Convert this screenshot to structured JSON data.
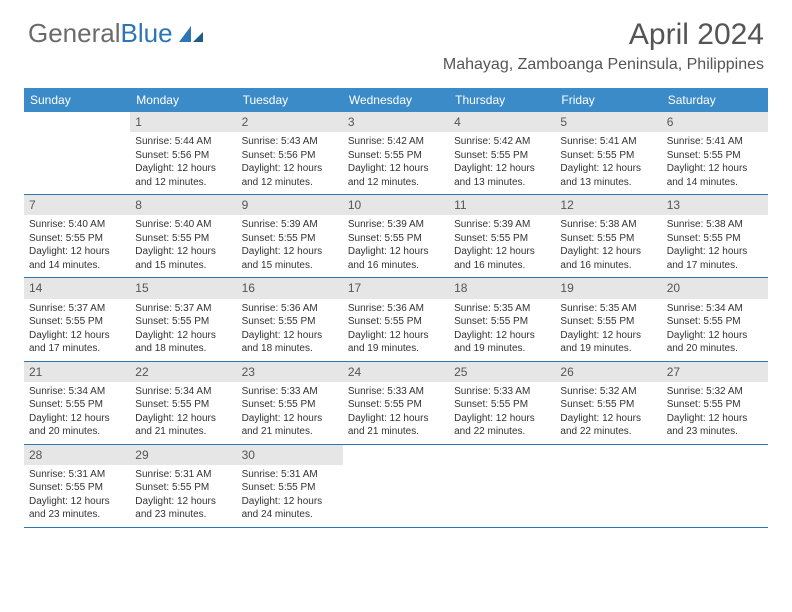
{
  "logo": {
    "text_general": "General",
    "text_blue": "Blue"
  },
  "title": "April 2024",
  "location": "Mahayag, Zamboanga Peninsula, Philippines",
  "colors": {
    "header_bg": "#3b8bc9",
    "row_border": "#2e75b6",
    "daynum_bg": "#e6e6e6",
    "text": "#333333",
    "logo_gray": "#6b6b6b",
    "logo_blue": "#2e75b6"
  },
  "day_names": [
    "Sunday",
    "Monday",
    "Tuesday",
    "Wednesday",
    "Thursday",
    "Friday",
    "Saturday"
  ],
  "weeks": [
    [
      null,
      {
        "n": "1",
        "sr": "5:44 AM",
        "ss": "5:56 PM",
        "dl": "12 hours and 12 minutes."
      },
      {
        "n": "2",
        "sr": "5:43 AM",
        "ss": "5:56 PM",
        "dl": "12 hours and 12 minutes."
      },
      {
        "n": "3",
        "sr": "5:42 AM",
        "ss": "5:55 PM",
        "dl": "12 hours and 12 minutes."
      },
      {
        "n": "4",
        "sr": "5:42 AM",
        "ss": "5:55 PM",
        "dl": "12 hours and 13 minutes."
      },
      {
        "n": "5",
        "sr": "5:41 AM",
        "ss": "5:55 PM",
        "dl": "12 hours and 13 minutes."
      },
      {
        "n": "6",
        "sr": "5:41 AM",
        "ss": "5:55 PM",
        "dl": "12 hours and 14 minutes."
      }
    ],
    [
      {
        "n": "7",
        "sr": "5:40 AM",
        "ss": "5:55 PM",
        "dl": "12 hours and 14 minutes."
      },
      {
        "n": "8",
        "sr": "5:40 AM",
        "ss": "5:55 PM",
        "dl": "12 hours and 15 minutes."
      },
      {
        "n": "9",
        "sr": "5:39 AM",
        "ss": "5:55 PM",
        "dl": "12 hours and 15 minutes."
      },
      {
        "n": "10",
        "sr": "5:39 AM",
        "ss": "5:55 PM",
        "dl": "12 hours and 16 minutes."
      },
      {
        "n": "11",
        "sr": "5:39 AM",
        "ss": "5:55 PM",
        "dl": "12 hours and 16 minutes."
      },
      {
        "n": "12",
        "sr": "5:38 AM",
        "ss": "5:55 PM",
        "dl": "12 hours and 16 minutes."
      },
      {
        "n": "13",
        "sr": "5:38 AM",
        "ss": "5:55 PM",
        "dl": "12 hours and 17 minutes."
      }
    ],
    [
      {
        "n": "14",
        "sr": "5:37 AM",
        "ss": "5:55 PM",
        "dl": "12 hours and 17 minutes."
      },
      {
        "n": "15",
        "sr": "5:37 AM",
        "ss": "5:55 PM",
        "dl": "12 hours and 18 minutes."
      },
      {
        "n": "16",
        "sr": "5:36 AM",
        "ss": "5:55 PM",
        "dl": "12 hours and 18 minutes."
      },
      {
        "n": "17",
        "sr": "5:36 AM",
        "ss": "5:55 PM",
        "dl": "12 hours and 19 minutes."
      },
      {
        "n": "18",
        "sr": "5:35 AM",
        "ss": "5:55 PM",
        "dl": "12 hours and 19 minutes."
      },
      {
        "n": "19",
        "sr": "5:35 AM",
        "ss": "5:55 PM",
        "dl": "12 hours and 19 minutes."
      },
      {
        "n": "20",
        "sr": "5:34 AM",
        "ss": "5:55 PM",
        "dl": "12 hours and 20 minutes."
      }
    ],
    [
      {
        "n": "21",
        "sr": "5:34 AM",
        "ss": "5:55 PM",
        "dl": "12 hours and 20 minutes."
      },
      {
        "n": "22",
        "sr": "5:34 AM",
        "ss": "5:55 PM",
        "dl": "12 hours and 21 minutes."
      },
      {
        "n": "23",
        "sr": "5:33 AM",
        "ss": "5:55 PM",
        "dl": "12 hours and 21 minutes."
      },
      {
        "n": "24",
        "sr": "5:33 AM",
        "ss": "5:55 PM",
        "dl": "12 hours and 21 minutes."
      },
      {
        "n": "25",
        "sr": "5:33 AM",
        "ss": "5:55 PM",
        "dl": "12 hours and 22 minutes."
      },
      {
        "n": "26",
        "sr": "5:32 AM",
        "ss": "5:55 PM",
        "dl": "12 hours and 22 minutes."
      },
      {
        "n": "27",
        "sr": "5:32 AM",
        "ss": "5:55 PM",
        "dl": "12 hours and 23 minutes."
      }
    ],
    [
      {
        "n": "28",
        "sr": "5:31 AM",
        "ss": "5:55 PM",
        "dl": "12 hours and 23 minutes."
      },
      {
        "n": "29",
        "sr": "5:31 AM",
        "ss": "5:55 PM",
        "dl": "12 hours and 23 minutes."
      },
      {
        "n": "30",
        "sr": "5:31 AM",
        "ss": "5:55 PM",
        "dl": "12 hours and 24 minutes."
      },
      null,
      null,
      null,
      null
    ]
  ],
  "labels": {
    "sunrise": "Sunrise: ",
    "sunset": "Sunset: ",
    "daylight": "Daylight: "
  }
}
